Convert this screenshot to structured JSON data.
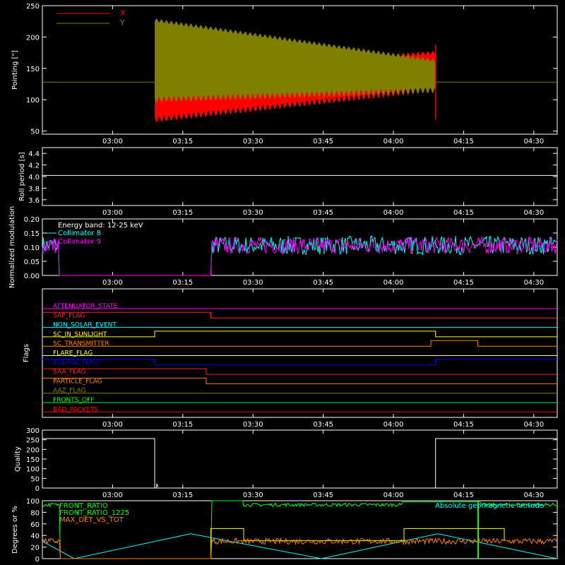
{
  "time_ticks": [
    "03:00",
    "03:15",
    "03:30",
    "03:45",
    "04:00",
    "04:15",
    "04:30"
  ],
  "chart_data": [
    {
      "type": "area",
      "ylabel": "Pointing [\"]",
      "ylim": [
        45,
        250
      ],
      "yticks": [
        50,
        100,
        150,
        200,
        250
      ],
      "legend": "top-left",
      "series": [
        {
          "name": "X",
          "color": "#ff0000",
          "start": "03:09",
          "end": "04:09",
          "base": 128,
          "lower_start": 63,
          "lower_end": 112,
          "upper_start": 150,
          "upper_end": 178,
          "baseline": 128
        },
        {
          "name": "Y",
          "color": "#808000",
          "start": "03:09",
          "end": "04:09",
          "base": 128,
          "lower_start": 95,
          "lower_end": 110,
          "upper_start": 230,
          "upper_end": 165,
          "baseline": 128
        }
      ]
    },
    {
      "type": "line",
      "ylabel": "Roll period [s]",
      "ylim": [
        3.5,
        4.5
      ],
      "yticks": [
        "3.6",
        "3.8",
        "4.0",
        "4.2",
        "4.4"
      ],
      "series": [
        {
          "name": "",
          "color": "#ffffff",
          "value": 4.02
        }
      ]
    },
    {
      "type": "line",
      "ylabel": "Normalized modulation",
      "ylim": [
        0,
        0.2
      ],
      "yticks": [
        "0.00",
        "0.05",
        "0.10",
        "0.15",
        "0.20"
      ],
      "annotation": "Energy band: 12-25 keV",
      "legend": "top-left",
      "series": [
        {
          "name": "Collimator 8",
          "color": "#00ffff",
          "mean": 0.1
        },
        {
          "name": "Collimator 9",
          "color": "#ff00ff",
          "mean": 0.1
        }
      ],
      "active_start": "03:21"
    },
    {
      "type": "line",
      "ylabel": "Flags",
      "flags": [
        {
          "label": "ATTENUATOR_STATE",
          "color": "#ff00ff",
          "transitions": []
        },
        {
          "label": "SAP_FLAG",
          "color": "#ff2020",
          "transitions": [
            [
              "03:21",
              "down"
            ]
          ]
        },
        {
          "label": "NON_SOLAR_EVENT",
          "color": "#00ffff",
          "transitions": []
        },
        {
          "label": "SC_IN_SUNLIGHT",
          "color": "#ffff00",
          "transitions": [
            [
              "03:09",
              "up"
            ],
            [
              "04:09",
              "down"
            ]
          ]
        },
        {
          "label": "SC_TRANSMITTER",
          "color": "#ff8000",
          "transitions": [
            [
              "04:08",
              "up"
            ],
            [
              "04:18",
              "down"
            ]
          ]
        },
        {
          "label": "FLARE_FLAG",
          "color": "#ffff60",
          "transitions": []
        },
        {
          "label": "ECLIPSE_FLAG",
          "color": "#0000ff",
          "transitions": [
            [
              "03:09",
              "down"
            ],
            [
              "04:09",
              "up"
            ]
          ]
        },
        {
          "label": "SAA_FLAG",
          "color": "#ff2020",
          "transitions": [
            [
              "03:20",
              "down"
            ]
          ]
        },
        {
          "label": "PARTICLE_FLAG",
          "color": "#ff8000",
          "transitions": [
            [
              "03:20",
              "down"
            ]
          ]
        },
        {
          "label": "AAZ_FLAG",
          "color": "#808000",
          "transitions": []
        },
        {
          "label": "FRONTS_OFF",
          "color": "#00ff00",
          "transitions": []
        },
        {
          "label": "BAD_PACKETS",
          "color": "#ff0000",
          "transitions": []
        }
      ]
    },
    {
      "type": "line",
      "ylabel": "Quality",
      "ylim": [
        0,
        300
      ],
      "yticks": [
        "0",
        "50",
        "100",
        "150",
        "200",
        "250",
        "300"
      ],
      "series": [
        {
          "name": "",
          "color": "#ffffff",
          "high": 256,
          "low_start": "03:09",
          "low_end": "04:09"
        }
      ]
    },
    {
      "type": "line",
      "ylabel": "Degrees or %",
      "ylim": [
        0,
        100
      ],
      "yticks": [
        "0",
        "20",
        "40",
        "60",
        "80",
        "100"
      ],
      "legend": "top-left",
      "series": [
        {
          "name": "FRONT_RATIO",
          "color": "#00ff00",
          "mean": 93
        },
        {
          "name": "FRONT_RATIO_1225",
          "color": "#ffff00",
          "values": [
            52,
            31,
            52
          ]
        },
        {
          "name": "MAX_DET_VS_TOT",
          "color": "#ff8000",
          "mean": 30
        },
        {
          "name": "Absolute geomagnetic latitude",
          "color": "#00ffff",
          "peak": 43
        }
      ]
    }
  ]
}
